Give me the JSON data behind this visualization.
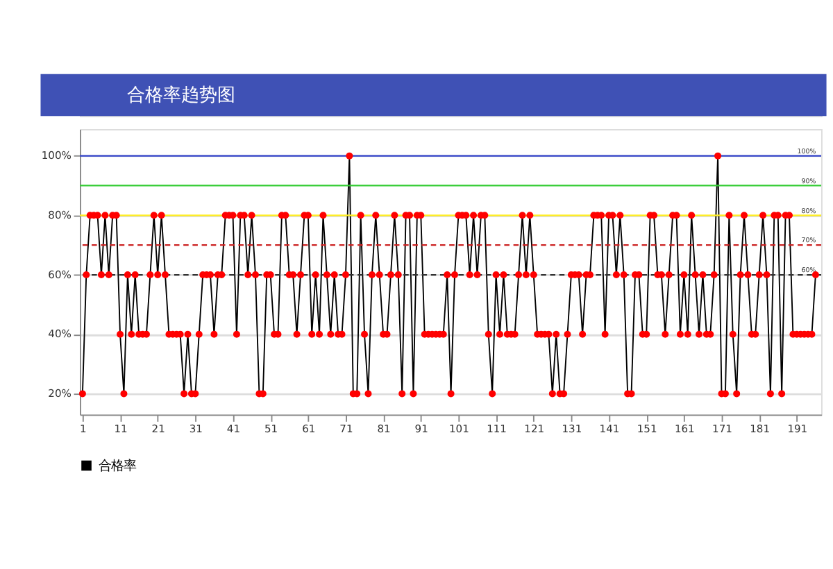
{
  "chart_data": {
    "type": "line",
    "title": "合格率趋势图",
    "x": [
      1,
      2,
      3,
      4,
      5,
      6,
      7,
      8,
      9,
      10,
      11,
      12,
      13,
      14,
      15,
      16,
      17,
      18,
      19,
      20,
      21,
      22,
      23,
      24,
      25,
      26,
      27,
      28,
      29,
      30,
      31,
      32,
      33,
      34,
      35,
      36,
      37,
      38,
      39,
      40,
      41,
      42,
      43,
      44,
      45,
      46,
      47,
      48,
      49,
      50,
      51,
      52,
      53,
      54,
      55,
      56,
      57,
      58,
      59,
      60,
      61,
      62,
      63,
      64,
      65,
      66,
      67,
      68,
      69,
      70,
      71,
      72,
      73,
      74,
      75,
      76,
      77,
      78,
      79,
      80,
      81,
      82,
      83,
      84,
      85,
      86,
      87,
      88,
      89,
      90,
      91,
      92,
      93,
      94,
      95,
      96,
      97,
      98,
      99,
      100,
      101,
      102,
      103,
      104,
      105,
      106,
      107,
      108,
      109,
      110,
      111,
      112,
      113,
      114,
      115,
      116,
      117,
      118,
      119,
      120,
      121,
      122,
      123,
      124,
      125,
      126,
      127,
      128,
      129,
      130,
      131,
      132,
      133,
      134,
      135,
      136,
      137,
      138,
      139,
      140,
      141,
      142,
      143,
      144,
      145,
      146,
      147,
      148,
      149,
      150,
      151,
      152,
      153,
      154,
      155,
      156,
      157,
      158,
      159,
      160,
      161,
      162,
      163,
      164,
      165,
      166,
      167,
      168,
      169,
      170,
      171,
      172,
      173,
      174,
      175,
      176,
      177,
      178,
      179,
      180,
      181,
      182,
      183,
      184,
      185,
      186,
      187,
      188,
      189,
      190,
      191,
      192,
      193,
      194,
      195,
      196
    ],
    "series": [
      {
        "name": "合格率",
        "color": "#000000",
        "values": [
          20,
          60,
          80,
          80,
          80,
          60,
          80,
          60,
          80,
          80,
          40,
          20,
          60,
          40,
          60,
          40,
          40,
          40,
          60,
          80,
          60,
          80,
          60,
          40,
          40,
          40,
          40,
          20,
          40,
          20,
          20,
          40,
          60,
          60,
          60,
          40,
          60,
          60,
          80,
          80,
          80,
          40,
          80,
          80,
          60,
          80,
          60,
          20,
          20,
          60,
          60,
          40,
          40,
          80,
          80,
          60,
          60,
          40,
          60,
          80,
          80,
          40,
          60,
          40,
          80,
          60,
          40,
          60,
          40,
          40,
          60,
          100,
          20,
          20,
          80,
          40,
          20,
          60,
          80,
          60,
          40,
          40,
          60,
          80,
          60,
          20,
          80,
          80,
          20,
          80,
          80,
          40,
          40,
          40,
          40,
          40,
          40,
          60,
          20,
          60,
          80,
          80,
          80,
          60,
          80,
          60,
          80,
          80,
          40,
          20,
          60,
          40,
          60,
          40,
          40,
          40,
          60,
          80,
          60,
          80,
          60,
          40,
          40,
          40,
          40,
          20,
          40,
          20,
          20,
          40,
          60,
          60,
          60,
          40,
          60,
          60,
          80,
          80,
          80,
          40,
          80,
          80,
          60,
          80,
          60,
          20,
          20,
          60,
          60,
          40,
          40,
          80,
          80,
          60,
          60,
          40,
          60,
          80,
          80,
          40,
          60,
          40,
          80,
          60,
          40,
          60,
          40,
          40,
          60,
          100,
          20,
          20,
          80,
          40,
          20,
          60,
          80,
          60,
          40,
          40,
          60,
          80,
          60,
          20,
          80,
          80,
          20,
          80,
          80,
          40,
          40,
          40,
          40,
          40,
          40,
          60
        ]
      }
    ],
    "xlim": [
      0.3,
      197.5
    ],
    "xticks": [
      1,
      11,
      21,
      31,
      41,
      51,
      61,
      71,
      81,
      91,
      101,
      111,
      121,
      131,
      141,
      151,
      161,
      171,
      181,
      191
    ],
    "ylim": [
      13,
      109
    ],
    "yticks": [
      {
        "value": 20,
        "label": "20%"
      },
      {
        "value": 40,
        "label": "40%"
      },
      {
        "value": 60,
        "label": "60%"
      },
      {
        "value": 80,
        "label": "80%"
      },
      {
        "value": 100,
        "label": "100%"
      }
    ],
    "ref_lines": [
      {
        "axis": "y",
        "value": 100,
        "label": "100%",
        "color": "#3344cc",
        "line_style": "solid"
      },
      {
        "axis": "y",
        "value": 90,
        "label": "90%",
        "color": "#33cc33",
        "line_style": "solid"
      },
      {
        "axis": "y",
        "value": 80,
        "label": "80%",
        "color": "#ffee22",
        "line_style": "solid"
      },
      {
        "axis": "y",
        "value": 70,
        "label": "70%",
        "color": "#cc2222",
        "line_style": "dashed"
      },
      {
        "axis": "y",
        "value": 60,
        "label": "60%",
        "color": "#333333",
        "line_style": "dashed"
      }
    ],
    "grid": "y",
    "legend": "bottom",
    "marker": "circle",
    "line_style": "solid"
  }
}
